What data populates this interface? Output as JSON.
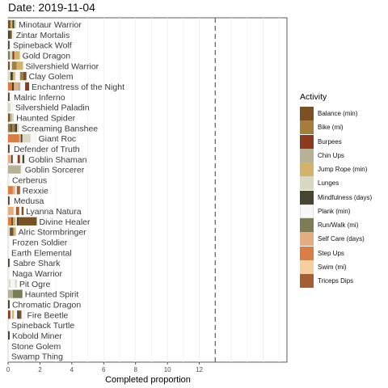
{
  "date_label": "Date: 2019-11-04",
  "chart_data": {
    "type": "bar",
    "orientation": "horizontal",
    "stacked": true,
    "xlabel": "Completed proportion",
    "ylabel": "",
    "xlim": [
      0,
      17.5
    ],
    "x_ticks": [
      "0",
      "2",
      "4",
      "6",
      "8",
      "10",
      "12"
    ],
    "reference_line": {
      "x": 13,
      "style": "dashed"
    },
    "grid": true,
    "legend_title": "Activity",
    "legend_position": "right",
    "activities": [
      {
        "name": "Balance (min)",
        "color": "#7a5123"
      },
      {
        "name": "Bike (mi)",
        "color": "#a57e3d"
      },
      {
        "name": "Burpees",
        "color": "#8b3a1e"
      },
      {
        "name": "Chin Ups",
        "color": "#b7b297"
      },
      {
        "name": "Jump Rope (min)",
        "color": "#d3b26a"
      },
      {
        "name": "Lunges",
        "color": "#d9d8c2"
      },
      {
        "name": "Mindfulness (days)",
        "color": "#47452f"
      },
      {
        "name": "Plank (min)",
        "color": "#f7f7f7"
      },
      {
        "name": "Run/Walk (mi)",
        "color": "#7c7d57"
      },
      {
        "name": "Self Care (days)",
        "color": "#e6ae80"
      },
      {
        "name": "Step Ups",
        "color": "#d97f45"
      },
      {
        "name": "Swim (mi)",
        "color": "#f5cfa0"
      },
      {
        "name": "Triceps Dips",
        "color": "#a55d32"
      }
    ],
    "categories": [
      "Minotaur Warrior",
      "Zintar Mortalis",
      "Spineback Wolf",
      "Gold Dragon",
      "Silvershield Warrior",
      "Clay Golem",
      "Enchantress of the Night",
      "Malric Inferno",
      "Silvershield Paladin",
      "Haunted Spider",
      "Screaming Banshee",
      "Giant Roc",
      "Defender of Truth",
      "Goblin Shaman",
      "Goblin Sorcerer",
      "Cerberus",
      "Rexxie",
      "Medusa",
      "Lyanna Natura",
      "Divine Healer",
      "Alric Stormbringer",
      "Frozen Soldier",
      "Earth Elemental",
      "Sabre Shark",
      "Naga Warrior",
      "Pit Ogre",
      "Haunted Spirit",
      "Chromatic Dragon",
      "Fire Beetle",
      "Spineback Turtle",
      "Kobold Miner",
      "Stone Golem",
      "Swamp Thing"
    ],
    "rows": [
      [
        [
          "Balance (min)",
          0.15
        ],
        [
          "Jump Rope (min)",
          0.12
        ],
        [
          "Mindfulness (days)",
          0.12
        ],
        [
          "Lunges",
          0.12
        ]
      ],
      [
        [
          "Mindfulness (days)",
          0.12
        ],
        [
          "Balance (min)",
          0.12
        ],
        [
          "Plank (min)",
          0.1
        ]
      ],
      [
        [
          "Mindfulness (days)",
          0.1
        ],
        [
          "Plank (min)",
          0.05
        ]
      ],
      [
        [
          "Run/Walk (mi)",
          0.12
        ],
        [
          "Lunges",
          0.15
        ],
        [
          "Burpees",
          0.12
        ],
        [
          "Jump Rope (min)",
          0.35
        ]
      ],
      [
        [
          "Balance (min)",
          0.12
        ],
        [
          "Plank (min)",
          0.12
        ],
        [
          "Bike (mi)",
          0.3
        ],
        [
          "Jump Rope (min)",
          0.4
        ]
      ],
      [
        [
          "Lunges",
          0.15
        ],
        [
          "Mindfulness (days)",
          0.15
        ],
        [
          "Jump Rope (min)",
          0.15
        ],
        [
          "Plank (min)",
          0.3
        ],
        [
          "Bike (mi)",
          0.2
        ],
        [
          "Balance (min)",
          0.2
        ]
      ],
      [
        [
          "Step Ups",
          0.25
        ],
        [
          "Mindfulness (days)",
          0.12
        ],
        [
          "Self Care (days)",
          0.2
        ],
        [
          "Chin Ups",
          0.2
        ],
        [
          "Plank (min)",
          0.3
        ],
        [
          "Burpees",
          0.25
        ]
      ],
      [
        [
          "Mindfulness (days)",
          0.1
        ],
        [
          "Plank (min)",
          0.1
        ]
      ],
      [
        [
          "Lunges",
          0.15
        ],
        [
          "Plank (min)",
          0.15
        ]
      ],
      [
        [
          "Balance (min)",
          0.12
        ],
        [
          "Chin Ups",
          0.12
        ],
        [
          "Lunges",
          0.12
        ]
      ],
      [
        [
          "Run/Walk (mi)",
          0.12
        ],
        [
          "Balance (min)",
          0.15
        ],
        [
          "Bike (mi)",
          0.15
        ],
        [
          "Mindfulness (days)",
          0.15
        ],
        [
          "Lunges",
          0.12
        ]
      ],
      [
        [
          "Step Ups",
          0.7
        ],
        [
          "Self Care (days)",
          0.1
        ],
        [
          "Mindfulness (days)",
          0.1
        ],
        [
          "Lunges",
          0.5
        ],
        [
          "Plank (min)",
          0.35
        ]
      ],
      [
        [
          "Mindfulness (days)",
          0.1
        ],
        [
          "Plank (min)",
          0.1
        ]
      ],
      [
        [
          "Self Care (days)",
          0.2
        ],
        [
          "Mindfulness (days)",
          0.1
        ],
        [
          "Plank (min)",
          0.3
        ],
        [
          "Burpees",
          0.15
        ],
        [
          "Plank (min)",
          0.15
        ],
        [
          "Mindfulness (days)",
          0.12
        ],
        [
          "Plank (min)",
          0.1
        ]
      ],
      [
        [
          "Chin Ups",
          0.8
        ],
        [
          "Plank (min)",
          0.1
        ]
      ],
      [
        [
          "Plank (min)",
          0.1
        ]
      ],
      [
        [
          "Step Ups",
          0.3
        ],
        [
          "Self Care (days)",
          0.15
        ],
        [
          "Plank (min)",
          0.1
        ],
        [
          "Triceps Dips",
          0.2
        ]
      ],
      [
        [
          "Mindfulness (days)",
          0.1
        ],
        [
          "Plank (min)",
          0.1
        ]
      ],
      [
        [
          "Self Care (days)",
          0.35
        ],
        [
          "Plank (min)",
          0.15
        ],
        [
          "Triceps Dips",
          0.2
        ],
        [
          "Plank (min)",
          0.15
        ],
        [
          "Balance (min)",
          0.12
        ]
      ],
      [
        [
          "Step Ups",
          0.2
        ],
        [
          "Balance (min)",
          0.12
        ],
        [
          "Jump Rope (min)",
          0.15
        ],
        [
          "Plank (min)",
          0.08
        ],
        [
          "Mindfulness (days)",
          0.15
        ],
        [
          "Balance (min)",
          1.1
        ]
      ],
      [
        [
          "Lunges",
          0.12
        ],
        [
          "Mindfulness (days)",
          0.1
        ],
        [
          "Balance (min)",
          0.12
        ],
        [
          "Jump Rope (min)",
          0.15
        ]
      ],
      [
        [
          "Plank (min)",
          0.1
        ]
      ],
      [
        [
          "Plank (min)",
          0.05
        ]
      ],
      [
        [
          "Mindfulness (days)",
          0.1
        ],
        [
          "Plank (min)",
          0.05
        ]
      ],
      [
        [
          "Plank (min)",
          0.1
        ]
      ],
      [
        [
          "Plank (min)",
          0.05
        ],
        [
          "Lunges",
          0.1
        ],
        [
          "Plank (min)",
          0.3
        ],
        [
          "Lunges",
          0.1
        ]
      ],
      [
        [
          "Chin Ups",
          0.3
        ],
        [
          "Run/Walk (mi)",
          0.6
        ]
      ],
      [
        [
          "Mindfulness (days)",
          0.1
        ]
      ],
      [
        [
          "Burpees",
          0.15
        ],
        [
          "Plank (min)",
          0.1
        ],
        [
          "Jump Rope (min)",
          0.12
        ],
        [
          "Plank (min)",
          0.2
        ],
        [
          "Mindfulness (days)",
          0.12
        ],
        [
          "Balance (min)",
          0.15
        ],
        [
          "Plank (min)",
          0.2
        ]
      ],
      [
        [
          "Plank (min)",
          0.05
        ]
      ],
      [
        [
          "Mindfulness (days)",
          0.1
        ]
      ],
      [
        [
          "Plank (min)",
          0.05
        ]
      ],
      [
        [
          "Plank (min)",
          0.05
        ]
      ]
    ]
  }
}
